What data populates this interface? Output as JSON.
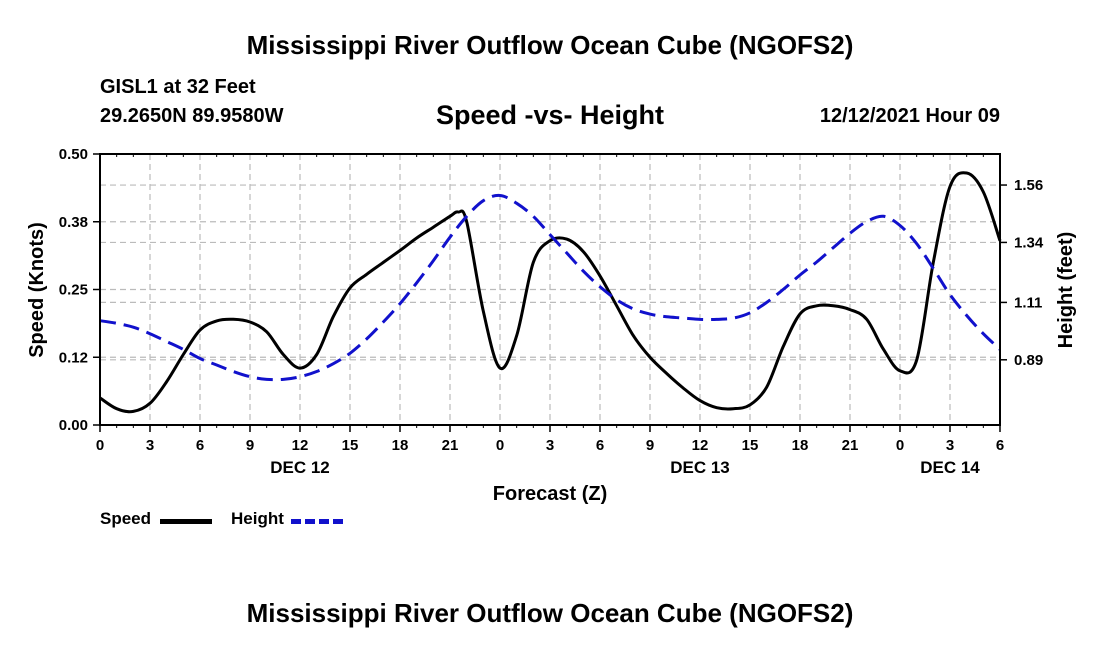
{
  "header": {
    "title": "Mississippi River Outflow Ocean Cube (NGOFS2)",
    "station": "GISL1 at 32 Feet",
    "coordinates": "29.2650N  89.9580W",
    "chart_title": "Speed -vs- Height",
    "datetime": "12/12/2021 Hour 09"
  },
  "footer": {
    "title": "Mississippi River Outflow Ocean Cube (NGOFS2)"
  },
  "legend": {
    "speed_label": "Speed",
    "height_label": "Height"
  },
  "colors": {
    "speed": "#000000",
    "height": "#1111cc",
    "grid": "#bbbbbb"
  },
  "chart_data": {
    "type": "line",
    "title": "Speed -vs- Height",
    "xlabel": "Forecast (Z)",
    "ylabel": "Speed (Knots)",
    "y2label": "Height (feet)",
    "xlim": [
      0,
      54
    ],
    "ylim": [
      0,
      0.5
    ],
    "y2lim": [
      0.64,
      1.679
    ],
    "x_ticks": [
      0,
      3,
      6,
      9,
      12,
      15,
      18,
      21,
      24,
      27,
      30,
      33,
      36,
      39,
      42,
      45,
      48,
      51,
      54
    ],
    "x_tick_labels": [
      "0",
      "3",
      "6",
      "9",
      "12",
      "15",
      "18",
      "21",
      "0",
      "3",
      "6",
      "9",
      "12",
      "15",
      "18",
      "21",
      "0",
      "3",
      "6"
    ],
    "date_labels": [
      {
        "x": 12,
        "label": "DEC 12"
      },
      {
        "x": 36,
        "label": "DEC 13"
      },
      {
        "x": 51,
        "label": "DEC 14"
      }
    ],
    "y_ticks": [
      0.0,
      0.125,
      0.25,
      0.375,
      0.5
    ],
    "y_tick_labels": [
      "0.00",
      "0.12",
      "0.25",
      "0.38",
      "0.50"
    ],
    "y2_ticks": [
      0.89,
      1.11,
      1.34,
      1.56
    ],
    "y2_tick_labels": [
      "0.89",
      "1.11",
      "1.34",
      "1.56"
    ],
    "grid": true,
    "series": [
      {
        "name": "Speed",
        "axis": "left",
        "x": [
          0,
          1,
          2,
          3,
          4,
          5,
          6,
          7,
          8,
          9,
          10,
          11,
          12,
          13,
          14,
          15,
          16,
          17,
          18,
          19,
          20,
          21,
          21.5,
          22,
          23,
          24,
          25,
          26,
          27,
          28,
          29,
          30,
          31,
          32,
          33,
          34,
          35,
          36,
          37,
          38,
          39,
          40,
          41,
          42,
          43,
          44,
          45,
          46,
          47,
          48,
          49,
          50,
          51,
          52,
          53,
          54
        ],
        "values": [
          0.05,
          0.03,
          0.025,
          0.04,
          0.08,
          0.13,
          0.175,
          0.192,
          0.195,
          0.19,
          0.172,
          0.13,
          0.105,
          0.13,
          0.2,
          0.253,
          0.278,
          0.3,
          0.322,
          0.345,
          0.365,
          0.385,
          0.393,
          0.375,
          0.21,
          0.105,
          0.165,
          0.3,
          0.34,
          0.343,
          0.32,
          0.275,
          0.22,
          0.165,
          0.125,
          0.095,
          0.068,
          0.045,
          0.032,
          0.03,
          0.037,
          0.07,
          0.145,
          0.205,
          0.22,
          0.22,
          0.213,
          0.195,
          0.14,
          0.1,
          0.12,
          0.3,
          0.44,
          0.465,
          0.43,
          0.34
        ]
      },
      {
        "name": "Height",
        "axis": "right",
        "x": [
          0,
          1,
          2,
          3,
          4,
          5,
          6,
          7,
          8,
          9,
          10,
          11,
          12,
          13,
          14,
          15,
          16,
          17,
          18,
          19,
          20,
          21,
          22,
          23,
          24,
          25,
          26,
          27,
          28,
          29,
          30,
          31,
          32,
          33,
          34,
          35,
          36,
          37,
          38,
          39,
          40,
          41,
          42,
          43,
          44,
          45,
          46,
          47,
          48,
          49,
          50,
          51,
          52,
          53,
          54
        ],
        "values": [
          1.04,
          1.03,
          1.015,
          0.99,
          0.96,
          0.93,
          0.895,
          0.87,
          0.845,
          0.825,
          0.815,
          0.815,
          0.825,
          0.845,
          0.875,
          0.915,
          0.97,
          1.035,
          1.105,
          1.185,
          1.27,
          1.36,
          1.44,
          1.5,
          1.52,
          1.49,
          1.44,
          1.37,
          1.3,
          1.23,
          1.17,
          1.12,
          1.085,
          1.065,
          1.055,
          1.05,
          1.045,
          1.045,
          1.05,
          1.07,
          1.11,
          1.16,
          1.215,
          1.265,
          1.32,
          1.375,
          1.42,
          1.44,
          1.405,
          1.335,
          1.24,
          1.14,
          1.06,
          0.99,
          0.93
        ]
      }
    ]
  }
}
